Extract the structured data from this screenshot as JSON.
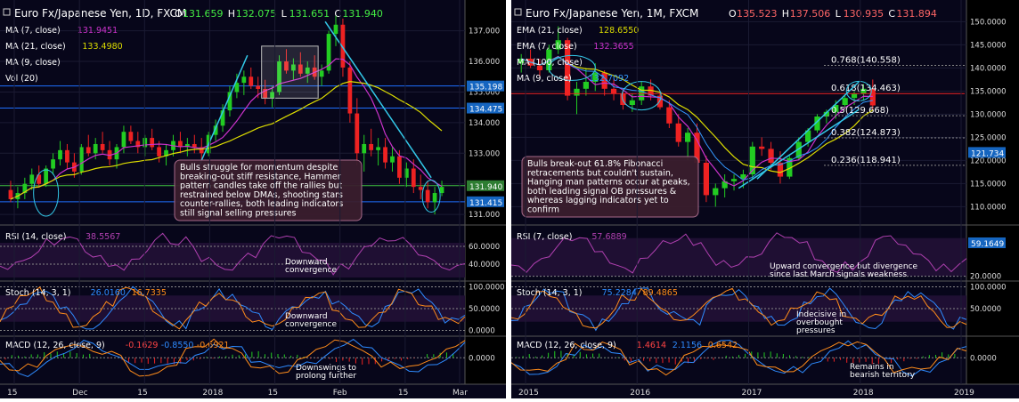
{
  "charts": [
    {
      "title": "Euro Fx/Japanese Yen, 1D, FXCM",
      "ohlc": {
        "o_label": "O",
        "o": "131.659",
        "h_label": "H",
        "h": "132.075",
        "l_label": "L",
        "l": "131.651",
        "c_label": "C",
        "c": "131.940"
      },
      "legend": [
        {
          "label": "MA (7, close)",
          "value": "131.9451",
          "color": "#cc33cc"
        },
        {
          "label": "MA (21, close)",
          "value": "133.4980",
          "color": "#dddd00"
        },
        {
          "label": "MA (9, close)",
          "value": "",
          "color": "#ffffff"
        },
        {
          "label": "Vol (20)",
          "value": "",
          "color": "#ffffff"
        }
      ],
      "price_axis": [
        {
          "v": 137.0,
          "label": "137.000"
        },
        {
          "v": 136.0,
          "label": "136.000"
        },
        {
          "v": 135.0,
          "label": "135.000"
        },
        {
          "v": 134.0,
          "label": "134.000"
        },
        {
          "v": 133.0,
          "label": "133.000"
        },
        {
          "v": 132.0,
          "label": "132.000"
        },
        {
          "v": 131.0,
          "label": "131.000"
        }
      ],
      "price_ylim": [
        130.8,
        137.6
      ],
      "badges": [
        {
          "v": 135.198,
          "label": "135.198",
          "color": "#1565c0"
        },
        {
          "v": 134.475,
          "label": "134.475",
          "color": "#1565c0"
        },
        {
          "v": 131.94,
          "label": "131.940",
          "color": "#2e7d32"
        },
        {
          "v": 131.415,
          "label": "131.415",
          "color": "#1565c0"
        }
      ],
      "hlines": [
        {
          "v": 135.198,
          "color": "#1e6fff"
        },
        {
          "v": 134.475,
          "color": "#1e6fff"
        },
        {
          "v": 131.415,
          "color": "#1e6fff"
        },
        {
          "v": 131.94,
          "color": "#3fbf3f"
        }
      ],
      "note": [
        "Bulls struggle for momentum despite",
        "breaking-out stiff resistance, Hammer",
        "pattern candles take off the rallies but",
        "restrained below DMAs, shooting stars",
        "counter-rallies, both leading indicators",
        "still signal selling pressures"
      ],
      "rsi": {
        "label": "RSI (14, close)",
        "value": "38.5567",
        "axis": [
          {
            "v": 60,
            "label": "60.0000"
          },
          {
            "v": 40,
            "label": "40.0000"
          }
        ],
        "ylim": [
          25,
          80
        ],
        "note": [
          "Downward",
          "convergence"
        ]
      },
      "stoch": {
        "label": "Stoch (14, 3, 1)",
        "k": "26.0160",
        "d": "16.7335",
        "axis": [
          {
            "v": 100,
            "label": "100.0000"
          },
          {
            "v": 50,
            "label": "50.0000"
          },
          {
            "v": 0,
            "label": "0.0000"
          }
        ],
        "ylim": [
          -5,
          105
        ],
        "note": [
          "Downward",
          "convergence"
        ]
      },
      "macd": {
        "label": "MACD (12, 26, close, 9)",
        "a": "-0.1629",
        "b": "-0.8550",
        "c": "-0.6921",
        "axis": [
          {
            "v": 0,
            "label": "0.0000"
          }
        ],
        "note": [
          "Downswings to",
          "prolong further"
        ]
      },
      "x_labels": [
        "15",
        "Dec",
        "15",
        "2018",
        "15",
        "Feb",
        "15",
        "Mar"
      ]
    },
    {
      "title": "Euro Fx/Japanese Yen, 1M, FXCM",
      "ohlc": {
        "o_label": "O",
        "o": "135.523",
        "h_label": "H",
        "h": "137.506",
        "l_label": "L",
        "l": "130.935",
        "c_label": "C",
        "c": "131.894"
      },
      "legend": [
        {
          "label": "EMA (21, close)",
          "value": "128.6550",
          "color": "#dddd00"
        },
        {
          "label": "EMA (7, close)",
          "value": "132.3655",
          "color": "#cc33cc"
        },
        {
          "label": "MA (100, close)",
          "value": "",
          "color": "#ffffff"
        },
        {
          "label": "MA (9, close)",
          "value": "132.7092",
          "color": "#3399ff"
        }
      ],
      "price_axis": [
        {
          "v": 150,
          "label": "150.0000"
        },
        {
          "v": 145,
          "label": "145.0000"
        },
        {
          "v": 140,
          "label": "140.0000"
        },
        {
          "v": 135,
          "label": "135.0000"
        },
        {
          "v": 130,
          "label": "130.0000"
        },
        {
          "v": 125,
          "label": "125.0000"
        },
        {
          "v": 120,
          "label": "120.0000"
        },
        {
          "v": 115,
          "label": "115.0000"
        },
        {
          "v": 110,
          "label": "110.0000"
        }
      ],
      "price_ylim": [
        107,
        152
      ],
      "badges": [
        {
          "v": 121.734,
          "label": "121.734",
          "color": "#1565c0"
        }
      ],
      "fib": [
        {
          "v": 140.558,
          "label": "0.768(140.558)"
        },
        {
          "v": 134.463,
          "label": "0.618(134.463)"
        },
        {
          "v": 129.668,
          "label": "0.5(129.668)"
        },
        {
          "v": 124.873,
          "label": "0.382(124.873)"
        },
        {
          "v": 118.941,
          "label": "0.236(118.941)"
        }
      ],
      "note": [
        "Bulls break-out 61.8% Fibonacci",
        "retracements but couldn't sustain,",
        "Hanging man patterns occur at peaks,",
        "both leading signal OB pressures &",
        "whereas lagging indicators yet to",
        "confirm"
      ],
      "rsi": {
        "label": "RSI (7, close)",
        "value": "57.6889",
        "badge": "59.1649",
        "axis": [
          {
            "v": 20,
            "label": "20.0000"
          }
        ],
        "ylim": [
          18,
          95
        ],
        "note": [
          "Upward convergence but divergence",
          "since last March signals weakness"
        ]
      },
      "stoch": {
        "label": "Stoch (14, 3, 1)",
        "k": "75.2284",
        "d": "89.4865",
        "axis": [
          {
            "v": 100,
            "label": "100.0000"
          },
          {
            "v": 50,
            "label": "50.0000"
          }
        ],
        "ylim": [
          -5,
          105
        ],
        "note": [
          "Indecisive in",
          "overbought",
          "pressures"
        ]
      },
      "macd": {
        "label": "MACD (12, 26, close, 9)",
        "a": "1.4614",
        "b": "2.1156",
        "c": "0.6542",
        "axis": [
          {
            "v": 0,
            "label": "0.0000"
          }
        ],
        "note": [
          "Remains in",
          "bearish territory"
        ]
      },
      "x_labels": [
        "2015",
        "2016",
        "2017",
        "2018",
        "2019"
      ]
    }
  ],
  "chart_data": [
    {
      "type": "candlestick",
      "title": "Euro Fx/Japanese Yen, 1D, FXCM",
      "x_ticks": [
        "15",
        "Dec",
        "15",
        "2018",
        "15",
        "Feb",
        "15",
        "Mar"
      ],
      "ylim": [
        130.8,
        137.6
      ],
      "candles": [
        [
          131.8,
          132.1,
          131.4,
          131.5
        ],
        [
          131.5,
          131.9,
          131.2,
          131.7
        ],
        [
          131.7,
          132.2,
          131.5,
          132.0
        ],
        [
          132.0,
          132.5,
          131.8,
          132.3
        ],
        [
          132.3,
          132.6,
          131.9,
          132.0
        ],
        [
          132.0,
          132.6,
          131.9,
          132.5
        ],
        [
          132.5,
          133.0,
          132.3,
          132.8
        ],
        [
          132.8,
          133.4,
          132.6,
          133.1
        ],
        [
          133.1,
          133.3,
          132.5,
          132.7
        ],
        [
          132.7,
          133.0,
          132.2,
          132.4
        ],
        [
          132.4,
          133.3,
          132.3,
          133.2
        ],
        [
          133.2,
          133.6,
          132.9,
          133.0
        ],
        [
          133.0,
          133.5,
          132.8,
          133.3
        ],
        [
          133.3,
          133.7,
          133.0,
          133.1
        ],
        [
          133.1,
          133.4,
          132.6,
          132.8
        ],
        [
          132.8,
          133.3,
          132.5,
          133.2
        ],
        [
          133.2,
          133.9,
          133.0,
          133.7
        ],
        [
          133.7,
          133.9,
          133.3,
          133.4
        ],
        [
          133.4,
          133.7,
          133.0,
          133.2
        ],
        [
          133.2,
          133.6,
          132.9,
          133.5
        ],
        [
          133.5,
          133.8,
          133.1,
          133.2
        ],
        [
          133.2,
          133.4,
          132.7,
          132.9
        ],
        [
          132.9,
          133.3,
          132.6,
          133.1
        ],
        [
          133.1,
          133.6,
          132.9,
          133.4
        ],
        [
          133.4,
          133.7,
          133.0,
          133.2
        ],
        [
          133.2,
          133.5,
          132.9,
          133.3
        ],
        [
          133.3,
          133.6,
          133.0,
          133.2
        ],
        [
          133.2,
          133.5,
          132.8,
          133.0
        ],
        [
          133.0,
          133.7,
          132.9,
          133.6
        ],
        [
          133.6,
          134.1,
          133.4,
          133.9
        ],
        [
          133.9,
          134.6,
          133.7,
          134.4
        ],
        [
          134.4,
          135.2,
          134.2,
          135.0
        ],
        [
          135.0,
          135.6,
          134.8,
          135.3
        ],
        [
          135.3,
          135.7,
          134.9,
          135.5
        ],
        [
          135.5,
          135.8,
          135.1,
          135.2
        ],
        [
          135.2,
          135.5,
          134.8,
          135.1
        ],
        [
          135.1,
          135.4,
          134.6,
          134.8
        ],
        [
          134.8,
          135.2,
          134.5,
          135.0
        ],
        [
          135.0,
          136.2,
          134.9,
          136.0
        ],
        [
          136.0,
          136.4,
          135.6,
          135.7
        ],
        [
          135.7,
          136.1,
          135.4,
          135.9
        ],
        [
          135.9,
          136.3,
          135.5,
          135.6
        ],
        [
          135.6,
          136.0,
          135.3,
          135.8
        ],
        [
          135.8,
          136.2,
          135.4,
          135.5
        ],
        [
          135.5,
          135.9,
          135.2,
          135.7
        ],
        [
          135.7,
          137.0,
          135.6,
          136.9
        ],
        [
          136.9,
          137.5,
          136.5,
          137.2
        ],
        [
          137.2,
          137.4,
          135.5,
          135.8
        ],
        [
          135.8,
          136.0,
          134.0,
          134.3
        ],
        [
          134.3,
          134.8,
          132.6,
          133.0
        ],
        [
          133.0,
          133.6,
          132.4,
          133.3
        ],
        [
          133.3,
          133.8,
          132.9,
          133.1
        ],
        [
          133.1,
          133.5,
          132.6,
          133.2
        ],
        [
          133.2,
          133.5,
          132.5,
          132.7
        ],
        [
          132.7,
          133.2,
          132.4,
          132.9
        ],
        [
          132.9,
          133.1,
          132.0,
          132.2
        ],
        [
          132.2,
          132.7,
          131.9,
          132.5
        ],
        [
          132.5,
          132.8,
          131.7,
          131.9
        ],
        [
          131.9,
          132.3,
          131.5,
          131.8
        ],
        [
          131.8,
          132.1,
          131.2,
          131.4
        ],
        [
          131.4,
          131.9,
          131.0,
          131.7
        ],
        [
          131.7,
          132.1,
          131.6,
          131.9
        ]
      ]
    },
    {
      "type": "candlestick",
      "title": "Euro Fx/Japanese Yen, 1M, FXCM",
      "x_ticks": [
        "2015",
        "2016",
        "2017",
        "2018",
        "2019"
      ],
      "ylim": [
        107,
        152
      ],
      "candles": [
        [
          141.0,
          143.0,
          139.0,
          142.0
        ],
        [
          142.0,
          144.0,
          140.0,
          140.5
        ],
        [
          140.5,
          142.0,
          138.0,
          139.5
        ],
        [
          139.5,
          145.0,
          139.0,
          144.0
        ],
        [
          144.0,
          149.0,
          143.0,
          146.0
        ],
        [
          146.0,
          146.5,
          133.0,
          134.0
        ],
        [
          134.0,
          137.0,
          130.0,
          135.5
        ],
        [
          135.5,
          140.0,
          134.0,
          137.0
        ],
        [
          137.0,
          141.0,
          135.0,
          139.0
        ],
        [
          139.0,
          139.5,
          134.0,
          135.5
        ],
        [
          135.5,
          137.5,
          133.0,
          134.5
        ],
        [
          134.5,
          135.0,
          131.0,
          132.0
        ],
        [
          132.0,
          134.5,
          130.5,
          133.0
        ],
        [
          133.0,
          137.0,
          132.0,
          136.0
        ],
        [
          136.0,
          137.5,
          133.0,
          134.0
        ],
        [
          134.0,
          135.0,
          131.0,
          131.5
        ],
        [
          131.5,
          133.0,
          127.0,
          128.0
        ],
        [
          128.0,
          130.0,
          123.0,
          124.0
        ],
        [
          124.0,
          127.0,
          120.0,
          126.0
        ],
        [
          126.0,
          128.0,
          118.0,
          119.5
        ],
        [
          119.5,
          121.0,
          111.0,
          112.5
        ],
        [
          112.5,
          115.0,
          110.0,
          114.0
        ],
        [
          114.0,
          117.0,
          112.0,
          115.5
        ],
        [
          115.5,
          117.0,
          113.5,
          116.0
        ],
        [
          116.0,
          118.0,
          114.0,
          117.0
        ],
        [
          117.0,
          124.0,
          116.0,
          123.0
        ],
        [
          123.0,
          125.0,
          121.0,
          122.5
        ],
        [
          122.5,
          124.0,
          118.0,
          119.5
        ],
        [
          119.5,
          122.0,
          115.0,
          116.5
        ],
        [
          116.5,
          121.0,
          116.0,
          120.5
        ],
        [
          120.5,
          125.0,
          120.0,
          124.0
        ],
        [
          124.0,
          127.0,
          123.0,
          126.5
        ],
        [
          126.5,
          130.0,
          126.0,
          129.5
        ],
        [
          129.5,
          131.0,
          128.0,
          130.5
        ],
        [
          130.5,
          133.0,
          129.0,
          132.0
        ],
        [
          132.0,
          134.0,
          131.0,
          133.5
        ],
        [
          133.5,
          135.0,
          132.0,
          134.5
        ],
        [
          134.5,
          136.5,
          133.0,
          135.5
        ],
        [
          135.5,
          137.5,
          130.9,
          131.9
        ]
      ]
    }
  ]
}
